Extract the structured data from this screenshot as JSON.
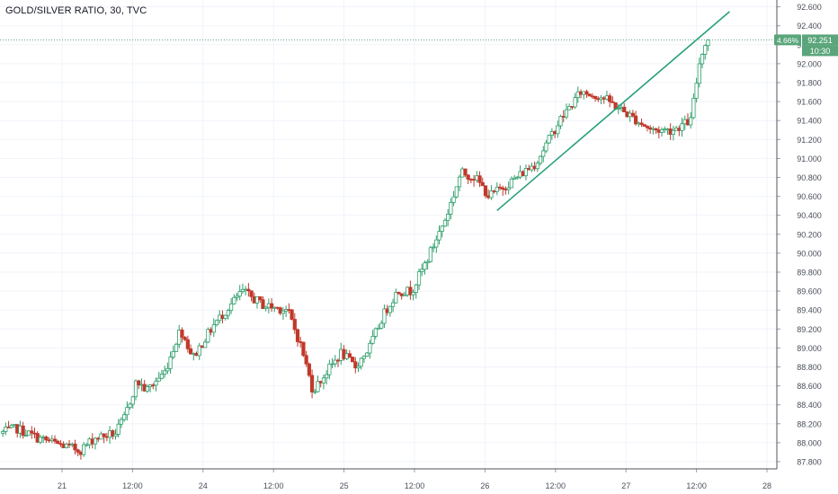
{
  "chart_data": {
    "type": "candlestick",
    "title": "GOLD/SILVER RATIO, 30, TVC",
    "ylim": [
      87.6,
      92.6
    ],
    "y_ticks": [
      "87.800",
      "88.000",
      "88.200",
      "88.400",
      "88.600",
      "88.800",
      "89.000",
      "89.200",
      "89.400",
      "89.600",
      "89.800",
      "90.000",
      "90.200",
      "90.400",
      "90.600",
      "90.800",
      "91.000",
      "91.200",
      "91.400",
      "91.600",
      "91.800",
      "92.000",
      "92.200",
      "92.400",
      "92.600"
    ],
    "x_ticks": [
      {
        "label": "21",
        "t": 0
      },
      {
        "label": "12:00",
        "t": 0.5
      },
      {
        "label": "24",
        "t": 1
      },
      {
        "label": "12:00",
        "t": 1.5
      },
      {
        "label": "25",
        "t": 2
      },
      {
        "label": "12:00",
        "t": 2.5
      },
      {
        "label": "26",
        "t": 3
      },
      {
        "label": "12:00",
        "t": 3.5
      },
      {
        "label": "27",
        "t": 4
      },
      {
        "label": "12:00",
        "t": 4.5
      },
      {
        "label": "28",
        "t": 5
      }
    ],
    "trendline": {
      "from": {
        "t": 3.085,
        "y": 90.45
      },
      "to": {
        "t": 4.735,
        "y": 92.55
      },
      "color": "#26a07a"
    },
    "last_price": {
      "value": "92.251",
      "change": "4.66%",
      "countdown": "10:30",
      "y": 92.251
    },
    "grid": true,
    "colors": {
      "up": "#2e9e6b",
      "down": "#c0392b",
      "price_label": "#5aa57a",
      "price_line": "#5aa57a"
    },
    "anchors": [
      [
        -0.42,
        88.1
      ],
      [
        -0.3,
        88.15
      ],
      [
        -0.15,
        88.05
      ],
      [
        0.0,
        87.98
      ],
      [
        0.15,
        87.92
      ],
      [
        0.25,
        88.05
      ],
      [
        0.4,
        88.1
      ],
      [
        0.46,
        88.25
      ],
      [
        0.55,
        88.65
      ],
      [
        0.62,
        88.55
      ],
      [
        0.75,
        88.75
      ],
      [
        0.86,
        89.2
      ],
      [
        0.95,
        88.9
      ],
      [
        1.1,
        89.25
      ],
      [
        1.3,
        89.6
      ],
      [
        1.45,
        89.45
      ],
      [
        1.62,
        89.4
      ],
      [
        1.72,
        89.0
      ],
      [
        1.8,
        88.55
      ],
      [
        1.9,
        88.75
      ],
      [
        2.0,
        88.95
      ],
      [
        2.1,
        88.8
      ],
      [
        2.2,
        89.0
      ],
      [
        2.3,
        89.35
      ],
      [
        2.4,
        89.6
      ],
      [
        2.5,
        89.6
      ],
      [
        2.6,
        89.9
      ],
      [
        2.75,
        90.4
      ],
      [
        2.85,
        90.85
      ],
      [
        2.95,
        90.8
      ],
      [
        3.05,
        90.6
      ],
      [
        3.2,
        90.75
      ],
      [
        3.38,
        90.95
      ],
      [
        3.55,
        91.4
      ],
      [
        3.7,
        91.7
      ],
      [
        3.85,
        91.65
      ],
      [
        4.05,
        91.45
      ],
      [
        4.2,
        91.3
      ],
      [
        4.35,
        91.3
      ],
      [
        4.48,
        91.4
      ],
      [
        4.55,
        92.1
      ],
      [
        4.6,
        92.25
      ]
    ]
  }
}
